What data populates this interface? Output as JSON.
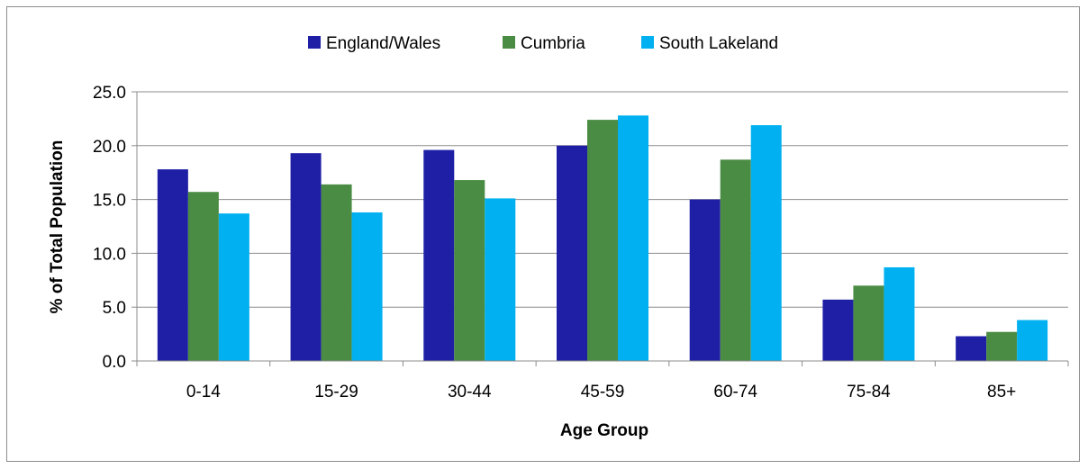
{
  "chart_data": {
    "type": "bar",
    "title": "",
    "xlabel": "Age Group",
    "ylabel": "% of Total Population",
    "ylim": [
      0,
      25
    ],
    "yticks": [
      "0.0",
      "5.0",
      "10.0",
      "15.0",
      "20.0",
      "25.0"
    ],
    "ytick_values": [
      0,
      5,
      10,
      15,
      20,
      25
    ],
    "grid": true,
    "legend_position": "top-center",
    "categories": [
      "0-14",
      "15-29",
      "30-44",
      "45-59",
      "60-74",
      "75-84",
      "85+"
    ],
    "series": [
      {
        "name": "England/Wales",
        "color": "#1f1fa6",
        "values": [
          17.8,
          19.3,
          19.6,
          20.0,
          15.0,
          5.7,
          2.3
        ]
      },
      {
        "name": "Cumbria",
        "color": "#4a8c44",
        "values": [
          15.7,
          16.4,
          16.8,
          22.4,
          18.7,
          7.0,
          2.7
        ]
      },
      {
        "name": "South Lakeland",
        "color": "#00b0f0",
        "values": [
          13.7,
          13.8,
          15.1,
          22.8,
          21.9,
          8.7,
          3.8
        ]
      }
    ]
  }
}
